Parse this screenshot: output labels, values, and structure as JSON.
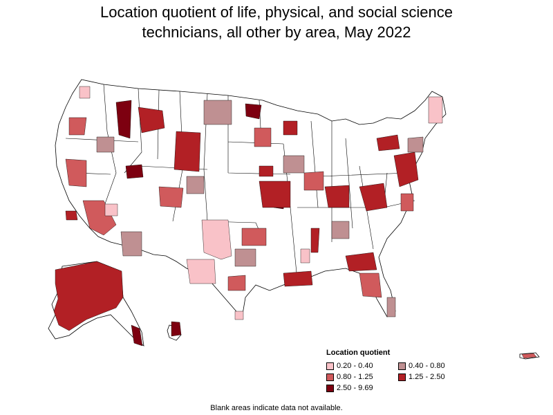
{
  "title": {
    "line1": "Location quotient of life, physical, and social science",
    "line2": "technicians, all other by area, May 2022"
  },
  "legend": {
    "title": "Location quotient",
    "items": [
      {
        "label": "0.20 - 0.40",
        "color": "#f9c2c8"
      },
      {
        "label": "0.40 - 0.80",
        "color": "#bf9092"
      },
      {
        "label": "0.80 - 1.25",
        "color": "#d05a5c"
      },
      {
        "label": "1.25 - 2.50",
        "color": "#b22025"
      },
      {
        "label": "2.50 - 9.69",
        "color": "#7d0010"
      }
    ]
  },
  "footnote": "Blank areas indicate data not available.",
  "colors": {
    "blank": "#ffffff",
    "border": "#000000"
  }
}
